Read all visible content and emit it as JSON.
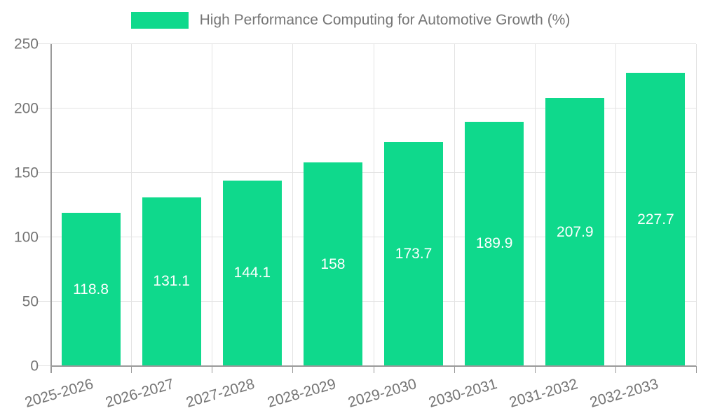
{
  "legend": {
    "label": "High Performance Computing for Automotive Growth (%)"
  },
  "colors": {
    "bar": "#0fd98c",
    "grid": "#e3e3e3",
    "axis": "#9a9a9a",
    "text": "#757575",
    "value_label": "#ffffff",
    "background": "#ffffff"
  },
  "chart_data": {
    "type": "bar",
    "title": "High Performance Computing for Automotive Growth (%)",
    "categories": [
      "2025-2026",
      "2026-2027",
      "2027-2028",
      "2028-2029",
      "2029-2030",
      "2030-2031",
      "2031-2032",
      "2032-2033"
    ],
    "values": [
      118.8,
      131.1,
      144.1,
      158,
      173.7,
      189.9,
      207.9,
      227.7
    ],
    "value_labels": [
      "118.8",
      "131.1",
      "144.1",
      "158",
      "173.7",
      "189.9",
      "207.9",
      "227.7"
    ],
    "xlabel": "",
    "ylabel": "",
    "ylim": [
      0,
      250
    ],
    "yticks": [
      0,
      50,
      100,
      150,
      200,
      250
    ],
    "grid": true,
    "legend_position": "top",
    "value_label_position": "center",
    "x_label_rotation_deg": -16
  }
}
